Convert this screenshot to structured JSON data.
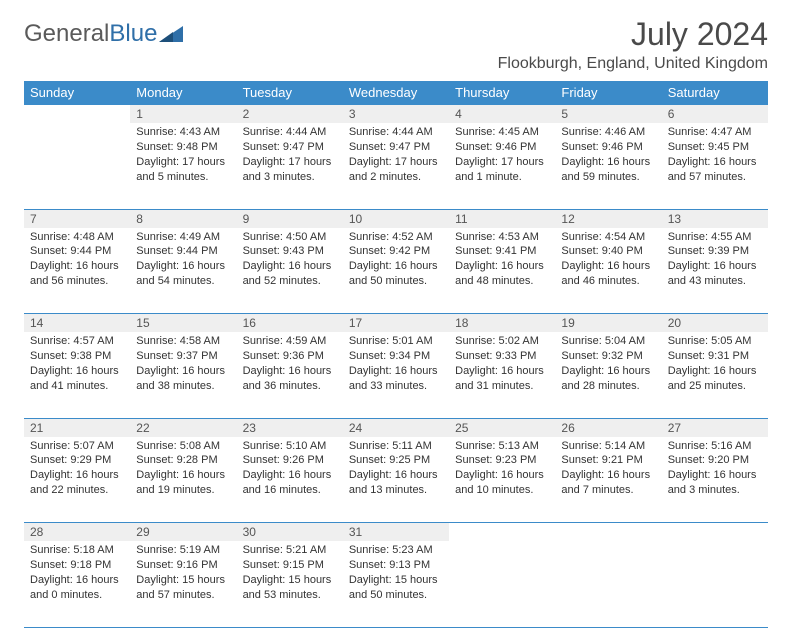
{
  "logo": {
    "text_general": "General",
    "text_blue": "Blue"
  },
  "title": "July 2024",
  "location": "Flookburgh, England, United Kingdom",
  "colors": {
    "header_bg": "#3b8bc9",
    "header_text": "#ffffff",
    "daynum_bg": "#efefef",
    "border": "#3b8bc9",
    "body_text": "#333333",
    "logo_gray": "#5a5a5a",
    "logo_blue": "#2f6fa8"
  },
  "day_headers": [
    "Sunday",
    "Monday",
    "Tuesday",
    "Wednesday",
    "Thursday",
    "Friday",
    "Saturday"
  ],
  "weeks": [
    {
      "nums": [
        "",
        "1",
        "2",
        "3",
        "4",
        "5",
        "6"
      ],
      "cells": [
        "",
        "Sunrise: 4:43 AM\nSunset: 9:48 PM\nDaylight: 17 hours and 5 minutes.",
        "Sunrise: 4:44 AM\nSunset: 9:47 PM\nDaylight: 17 hours and 3 minutes.",
        "Sunrise: 4:44 AM\nSunset: 9:47 PM\nDaylight: 17 hours and 2 minutes.",
        "Sunrise: 4:45 AM\nSunset: 9:46 PM\nDaylight: 17 hours and 1 minute.",
        "Sunrise: 4:46 AM\nSunset: 9:46 PM\nDaylight: 16 hours and 59 minutes.",
        "Sunrise: 4:47 AM\nSunset: 9:45 PM\nDaylight: 16 hours and 57 minutes."
      ]
    },
    {
      "nums": [
        "7",
        "8",
        "9",
        "10",
        "11",
        "12",
        "13"
      ],
      "cells": [
        "Sunrise: 4:48 AM\nSunset: 9:44 PM\nDaylight: 16 hours and 56 minutes.",
        "Sunrise: 4:49 AM\nSunset: 9:44 PM\nDaylight: 16 hours and 54 minutes.",
        "Sunrise: 4:50 AM\nSunset: 9:43 PM\nDaylight: 16 hours and 52 minutes.",
        "Sunrise: 4:52 AM\nSunset: 9:42 PM\nDaylight: 16 hours and 50 minutes.",
        "Sunrise: 4:53 AM\nSunset: 9:41 PM\nDaylight: 16 hours and 48 minutes.",
        "Sunrise: 4:54 AM\nSunset: 9:40 PM\nDaylight: 16 hours and 46 minutes.",
        "Sunrise: 4:55 AM\nSunset: 9:39 PM\nDaylight: 16 hours and 43 minutes."
      ]
    },
    {
      "nums": [
        "14",
        "15",
        "16",
        "17",
        "18",
        "19",
        "20"
      ],
      "cells": [
        "Sunrise: 4:57 AM\nSunset: 9:38 PM\nDaylight: 16 hours and 41 minutes.",
        "Sunrise: 4:58 AM\nSunset: 9:37 PM\nDaylight: 16 hours and 38 minutes.",
        "Sunrise: 4:59 AM\nSunset: 9:36 PM\nDaylight: 16 hours and 36 minutes.",
        "Sunrise: 5:01 AM\nSunset: 9:34 PM\nDaylight: 16 hours and 33 minutes.",
        "Sunrise: 5:02 AM\nSunset: 9:33 PM\nDaylight: 16 hours and 31 minutes.",
        "Sunrise: 5:04 AM\nSunset: 9:32 PM\nDaylight: 16 hours and 28 minutes.",
        "Sunrise: 5:05 AM\nSunset: 9:31 PM\nDaylight: 16 hours and 25 minutes."
      ]
    },
    {
      "nums": [
        "21",
        "22",
        "23",
        "24",
        "25",
        "26",
        "27"
      ],
      "cells": [
        "Sunrise: 5:07 AM\nSunset: 9:29 PM\nDaylight: 16 hours and 22 minutes.",
        "Sunrise: 5:08 AM\nSunset: 9:28 PM\nDaylight: 16 hours and 19 minutes.",
        "Sunrise: 5:10 AM\nSunset: 9:26 PM\nDaylight: 16 hours and 16 minutes.",
        "Sunrise: 5:11 AM\nSunset: 9:25 PM\nDaylight: 16 hours and 13 minutes.",
        "Sunrise: 5:13 AM\nSunset: 9:23 PM\nDaylight: 16 hours and 10 minutes.",
        "Sunrise: 5:14 AM\nSunset: 9:21 PM\nDaylight: 16 hours and 7 minutes.",
        "Sunrise: 5:16 AM\nSunset: 9:20 PM\nDaylight: 16 hours and 3 minutes."
      ]
    },
    {
      "nums": [
        "28",
        "29",
        "30",
        "31",
        "",
        "",
        ""
      ],
      "cells": [
        "Sunrise: 5:18 AM\nSunset: 9:18 PM\nDaylight: 16 hours and 0 minutes.",
        "Sunrise: 5:19 AM\nSunset: 9:16 PM\nDaylight: 15 hours and 57 minutes.",
        "Sunrise: 5:21 AM\nSunset: 9:15 PM\nDaylight: 15 hours and 53 minutes.",
        "Sunrise: 5:23 AM\nSunset: 9:13 PM\nDaylight: 15 hours and 50 minutes.",
        "",
        "",
        ""
      ]
    }
  ]
}
